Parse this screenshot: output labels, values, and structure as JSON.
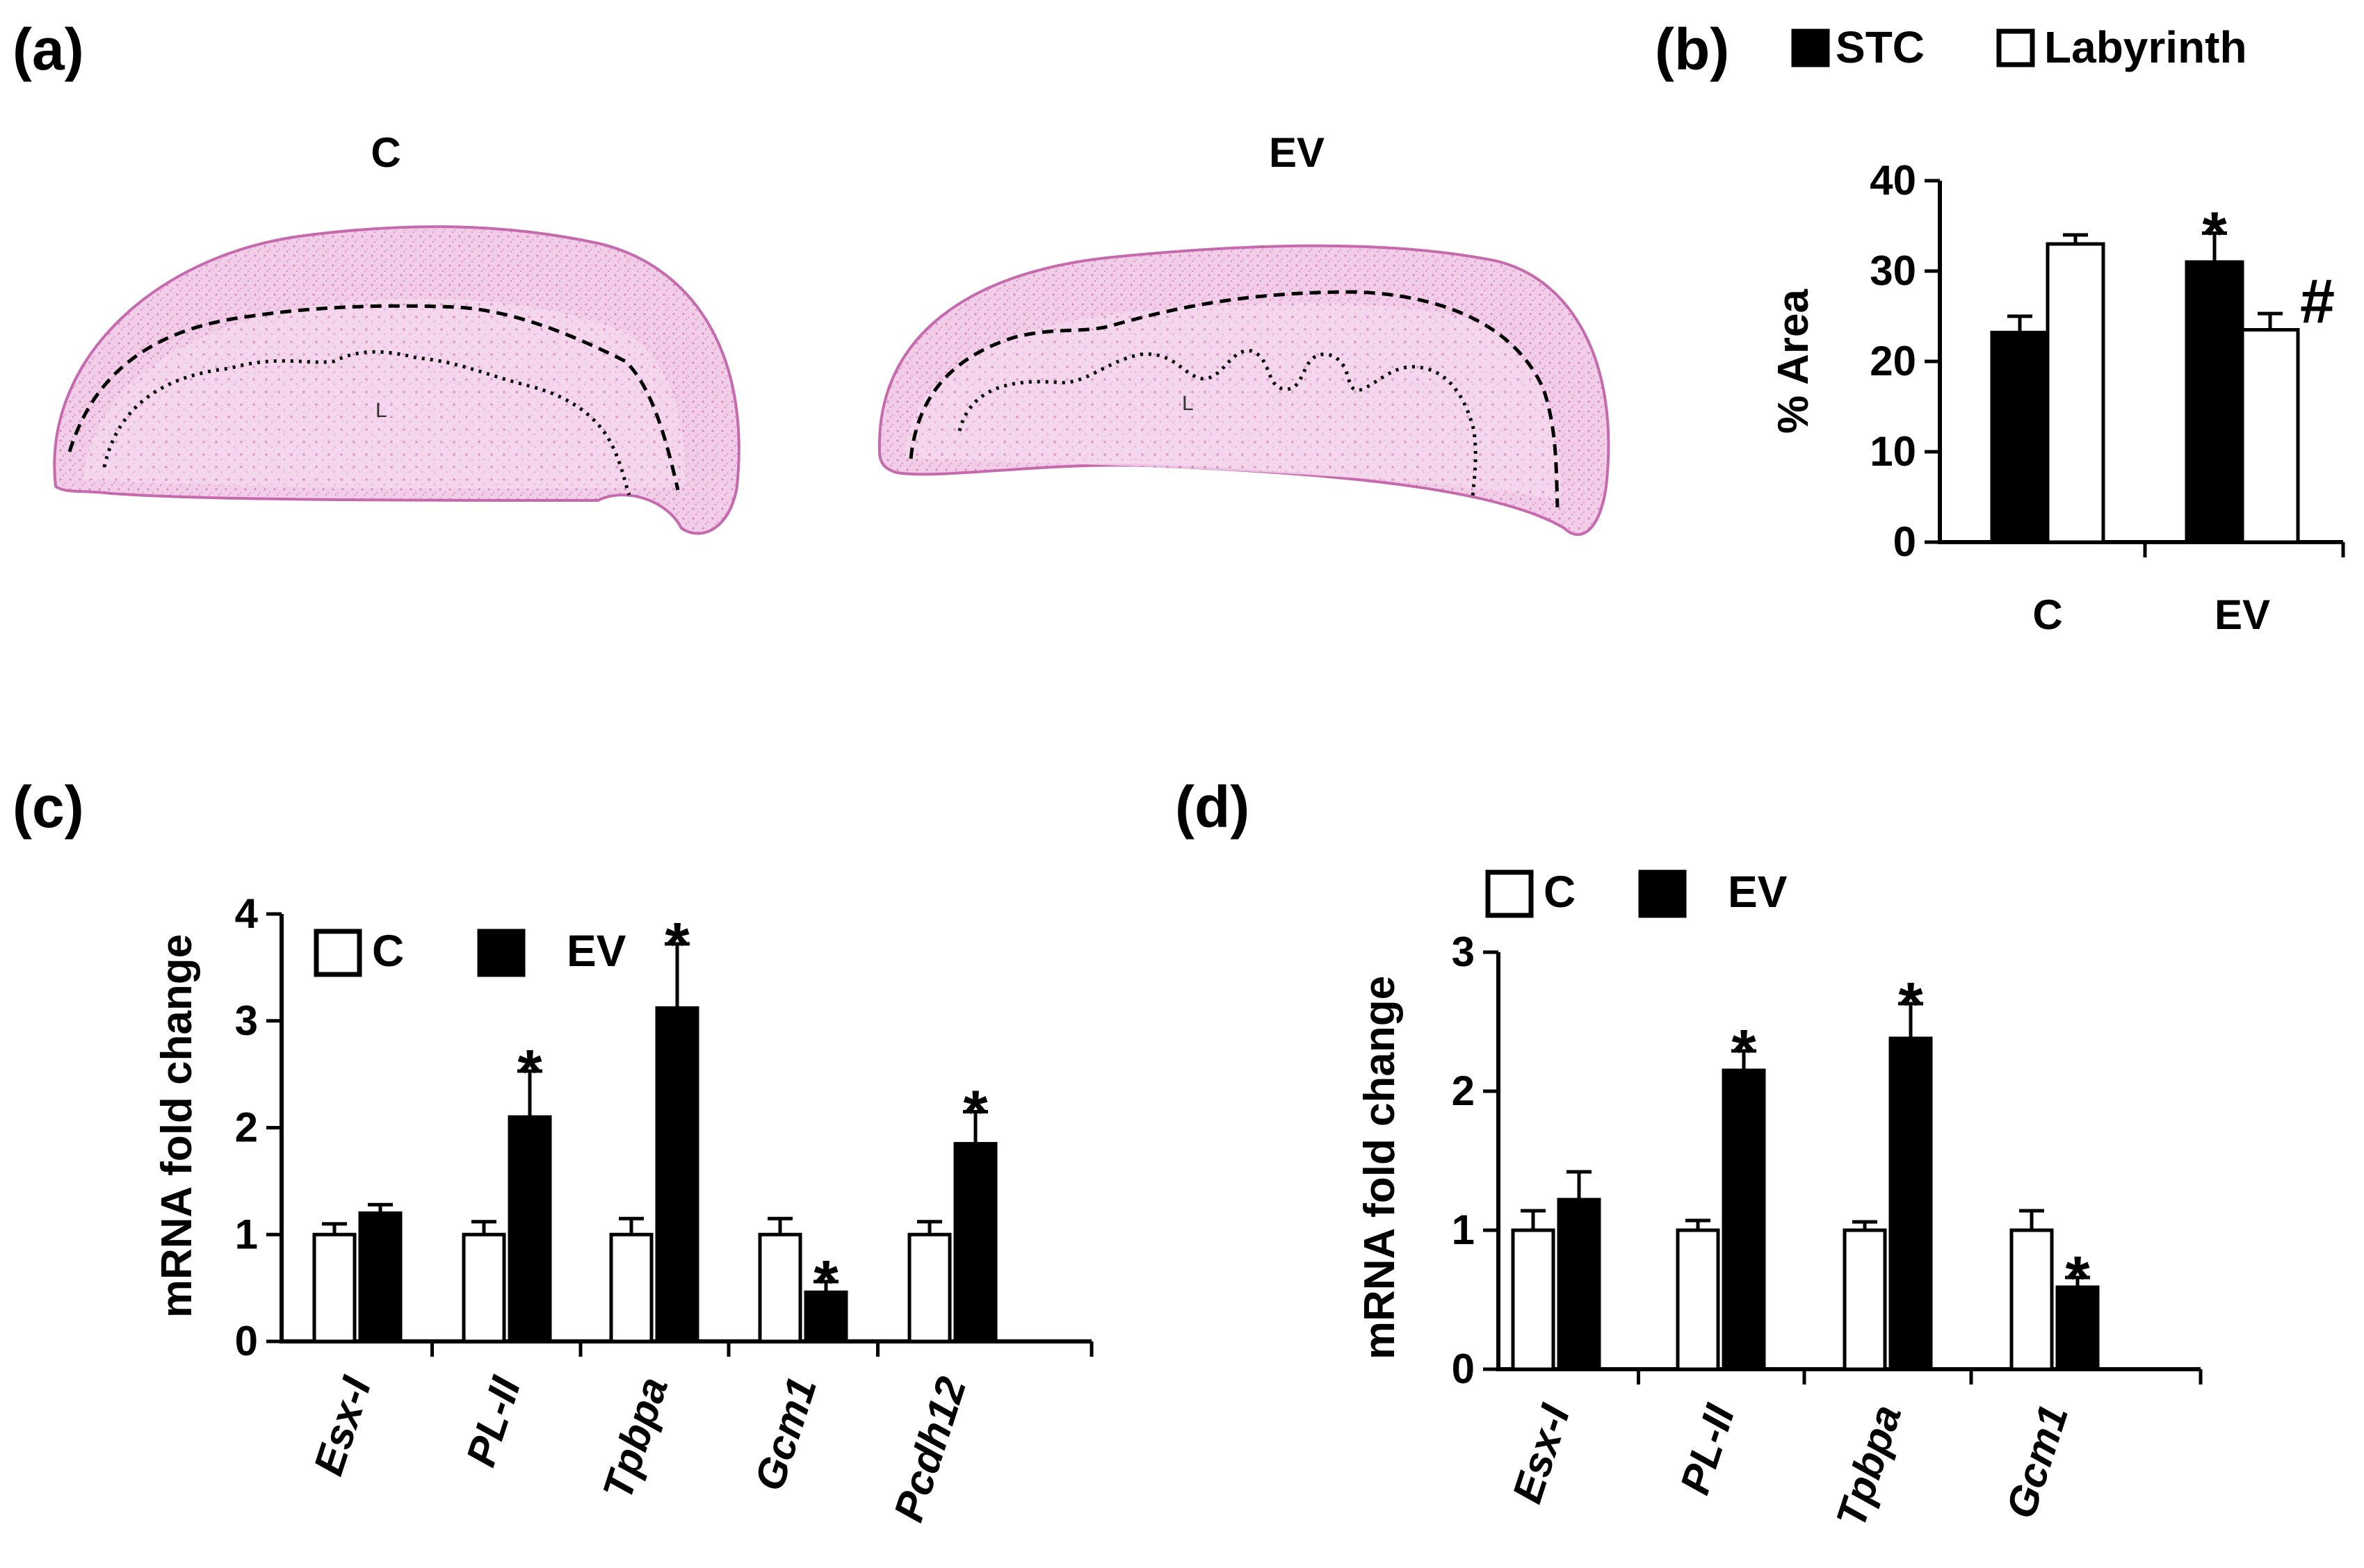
{
  "panels": {
    "a": {
      "label": "(a)",
      "images": [
        {
          "label": "C",
          "region_label": "L"
        },
        {
          "label": "EV",
          "region_label": "L"
        }
      ]
    },
    "b": {
      "label": "(b)"
    },
    "c": {
      "label": "(c)"
    },
    "d": {
      "label": "(d)"
    }
  },
  "chart_data": [
    {
      "id": "b",
      "type": "bar",
      "categories": [
        "C",
        "EV"
      ],
      "series": [
        {
          "name": "STC",
          "fill": "#000000",
          "values": [
            23.2,
            31.0
          ],
          "errors": [
            1.8,
            3.2
          ],
          "annotations": [
            "",
            "*"
          ]
        },
        {
          "name": "Labyrinth",
          "fill": "#ffffff",
          "values": [
            33.0,
            23.5
          ],
          "errors": [
            1.0,
            1.8
          ],
          "annotations": [
            "",
            "#"
          ]
        }
      ],
      "ylabel": "% Area",
      "ylim": [
        0,
        40
      ],
      "yticks": [
        0,
        10,
        20,
        30,
        40
      ],
      "legend": "top"
    },
    {
      "id": "c",
      "type": "bar",
      "categories": [
        "Esx-I",
        "PL-II",
        "Tpbpa",
        "Gcm1",
        "Pcdh12"
      ],
      "series": [
        {
          "name": "C",
          "fill": "#ffffff",
          "values": [
            1.0,
            1.0,
            1.0,
            1.0,
            1.0
          ],
          "errors": [
            0.1,
            0.12,
            0.15,
            0.15,
            0.12
          ],
          "annotations": [
            "",
            "",
            "",
            "",
            ""
          ]
        },
        {
          "name": "EV",
          "fill": "#000000",
          "values": [
            1.2,
            2.1,
            3.12,
            0.46,
            1.85
          ],
          "errors": [
            0.08,
            0.43,
            0.6,
            0.1,
            0.3
          ],
          "annotations": [
            "",
            "*",
            "*",
            "*",
            "*"
          ]
        }
      ],
      "ylabel": "mRNA fold change",
      "ylim": [
        0,
        4
      ],
      "yticks": [
        0,
        1,
        2,
        3,
        4
      ],
      "legend": "top-left"
    },
    {
      "id": "d",
      "type": "bar",
      "categories": [
        "Esx-I",
        "PL-II",
        "Tpbpa",
        "Gcm1"
      ],
      "series": [
        {
          "name": "C",
          "fill": "#ffffff",
          "values": [
            1.0,
            1.0,
            1.0,
            1.0
          ],
          "errors": [
            0.14,
            0.07,
            0.06,
            0.14
          ],
          "annotations": [
            "",
            "",
            "",
            ""
          ]
        },
        {
          "name": "EV",
          "fill": "#000000",
          "values": [
            1.22,
            2.15,
            2.38,
            0.59
          ],
          "errors": [
            0.2,
            0.14,
            0.25,
            0.07
          ],
          "annotations": [
            "",
            "*",
            "*",
            "*"
          ]
        }
      ],
      "ylabel": "mRNA fold change",
      "ylim": [
        0,
        3
      ],
      "yticks": [
        0,
        1,
        2,
        3
      ],
      "legend": "top"
    }
  ]
}
